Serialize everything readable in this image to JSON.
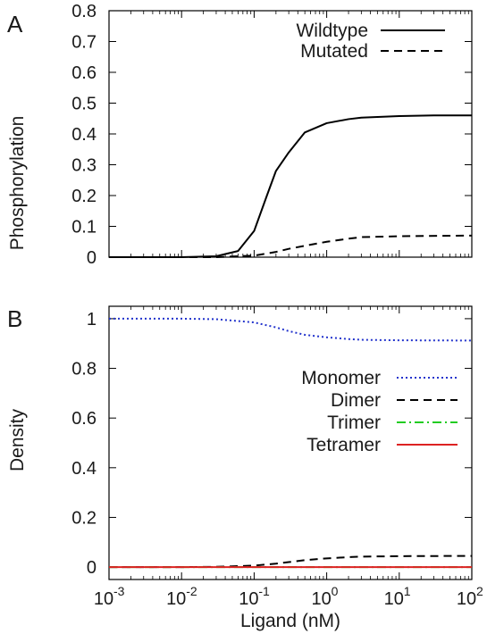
{
  "chart_data": [
    {
      "panel_label": "A",
      "type": "line",
      "xscale": "log",
      "xlim": [
        0.001,
        100
      ],
      "ylim": [
        0,
        0.8
      ],
      "yticks": [
        "0",
        "0.1",
        "0.2",
        "0.3",
        "0.4",
        "0.5",
        "0.6",
        "0.7",
        "0.8"
      ],
      "ylabel": "Phosphorylation",
      "xlabel": "",
      "legend": "top-right",
      "series": [
        {
          "name": "Wildtype",
          "style": "solid",
          "color": "#000000",
          "x": [
            0.001,
            0.003,
            0.01,
            0.03,
            0.06,
            0.1,
            0.15,
            0.2,
            0.3,
            0.5,
            1,
            2,
            3,
            10,
            30,
            100
          ],
          "y": [
            0,
            0,
            0,
            0.003,
            0.02,
            0.085,
            0.2,
            0.28,
            0.34,
            0.405,
            0.435,
            0.448,
            0.453,
            0.458,
            0.46,
            0.46
          ]
        },
        {
          "name": "Mutated",
          "style": "dashed",
          "color": "#000000",
          "x": [
            0.001,
            0.01,
            0.03,
            0.1,
            0.2,
            0.3,
            0.5,
            1,
            2,
            3,
            10,
            100
          ],
          "y": [
            0,
            0,
            0,
            0.005,
            0.017,
            0.027,
            0.037,
            0.05,
            0.06,
            0.065,
            0.068,
            0.07
          ]
        }
      ]
    },
    {
      "panel_label": "B",
      "type": "line",
      "xscale": "log",
      "xlim": [
        0.001,
        100
      ],
      "ylim": [
        -0.05,
        1.05
      ],
      "yticks": [
        "0",
        "0.2",
        "0.4",
        "0.6",
        "0.8",
        "1"
      ],
      "xticks": [
        {
          "base": "10",
          "exp": "-3",
          "value": 0.001
        },
        {
          "base": "10",
          "exp": "-2",
          "value": 0.01
        },
        {
          "base": "10",
          "exp": "-1",
          "value": 0.1
        },
        {
          "base": "10",
          "exp": "0",
          "value": 1
        },
        {
          "base": "10",
          "exp": "1",
          "value": 10
        },
        {
          "base": "10",
          "exp": "2",
          "value": 100
        }
      ],
      "ylabel": "Density",
      "xlabel": "Ligand (nM)",
      "legend": "right",
      "series": [
        {
          "name": "Monomer",
          "style": "dotted",
          "color": "#2233cc",
          "x": [
            0.001,
            0.01,
            0.03,
            0.1,
            0.2,
            0.3,
            0.5,
            1,
            2,
            3,
            10,
            100
          ],
          "y": [
            1.0,
            1.0,
            0.998,
            0.985,
            0.965,
            0.95,
            0.935,
            0.925,
            0.918,
            0.915,
            0.913,
            0.912
          ]
        },
        {
          "name": "Dimer",
          "style": "dashed",
          "color": "#000000",
          "x": [
            0.001,
            0.01,
            0.03,
            0.1,
            0.2,
            0.3,
            0.5,
            1,
            2,
            3,
            10,
            100
          ],
          "y": [
            0,
            0,
            0.001,
            0.006,
            0.014,
            0.02,
            0.028,
            0.035,
            0.04,
            0.042,
            0.044,
            0.045
          ]
        },
        {
          "name": "Trimer",
          "style": "dash-dot",
          "color": "#22cc22",
          "x": [
            0.001,
            100
          ],
          "y": [
            0,
            0
          ]
        },
        {
          "name": "Tetramer",
          "style": "solid",
          "color": "#dd2222",
          "x": [
            0.001,
            100
          ],
          "y": [
            0,
            0
          ]
        }
      ]
    }
  ]
}
